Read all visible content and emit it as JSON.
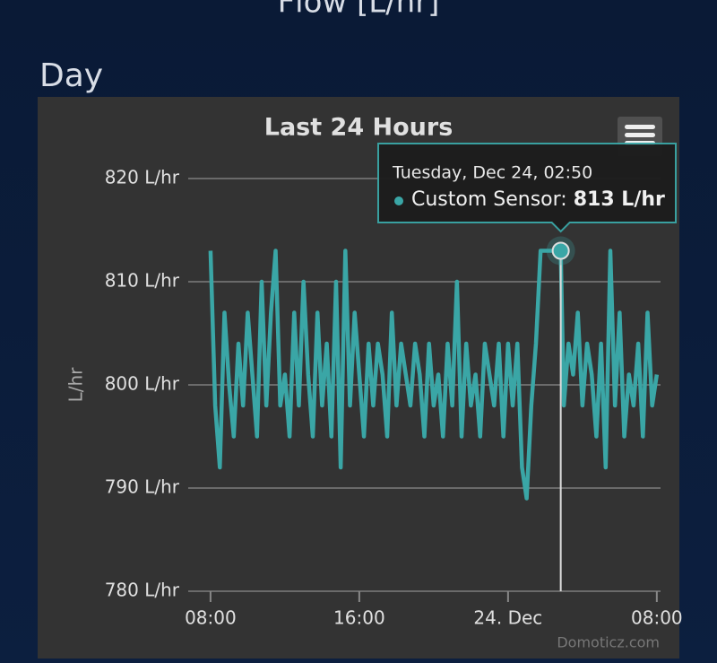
{
  "page_title": "Flow [L/hr]",
  "section": "Day",
  "credit": "Domoticz.com",
  "chart_data": {
    "type": "line",
    "title": "Last 24 Hours",
    "y_label": "L/hr",
    "x": [
      8,
      8.25,
      8.5,
      8.75,
      9,
      9.25,
      9.5,
      9.75,
      10,
      10.25,
      10.5,
      10.75,
      11,
      11.25,
      11.5,
      11.75,
      12,
      12.25,
      12.5,
      12.75,
      13,
      13.25,
      13.5,
      13.75,
      14,
      14.25,
      14.5,
      14.75,
      15,
      15.25,
      15.5,
      15.75,
      16,
      16.25,
      16.5,
      16.75,
      17,
      17.25,
      17.5,
      17.75,
      18,
      18.25,
      18.5,
      18.75,
      19,
      19.25,
      19.5,
      19.75,
      20,
      20.25,
      20.5,
      20.75,
      21,
      21.25,
      21.5,
      21.75,
      22,
      22.25,
      22.5,
      22.75,
      23,
      23.25,
      23.5,
      23.75,
      24,
      24.25,
      24.5,
      24.75,
      25,
      25.25,
      25.5,
      25.75,
      26,
      26.25,
      26.5,
      26.833,
      27,
      27.25,
      27.5,
      27.75,
      28,
      28.25,
      28.5,
      28.75,
      29,
      29.25,
      29.5,
      29.75,
      30,
      30.25,
      30.5,
      30.75,
      31,
      31.25,
      31.5,
      31.75,
      32
    ],
    "series": [
      {
        "name": "Custom Sensor",
        "color": "#3aa6a6",
        "values": [
          813,
          798,
          792,
          807,
          800,
          795,
          804,
          798,
          807,
          801,
          795,
          810,
          798,
          807,
          813,
          798,
          801,
          795,
          807,
          798,
          810,
          801,
          795,
          807,
          798,
          804,
          795,
          810,
          792,
          813,
          798,
          807,
          801,
          795,
          804,
          798,
          804,
          801,
          795,
          807,
          798,
          804,
          801,
          798,
          804,
          801,
          795,
          804,
          798,
          801,
          795,
          804,
          798,
          810,
          795,
          804,
          798,
          801,
          795,
          804,
          801,
          798,
          804,
          795,
          804,
          798,
          804,
          792,
          789,
          798,
          804,
          813,
          813,
          813,
          813,
          813,
          798,
          804,
          801,
          807,
          798,
          804,
          801,
          795,
          804,
          792,
          813,
          798,
          807,
          795,
          801,
          798,
          804,
          795,
          807,
          798,
          801
        ]
      }
    ],
    "xlim": [
      6.8,
      32.2
    ],
    "xticks": [
      {
        "value": 8,
        "label": "08:00"
      },
      {
        "value": 16,
        "label": "16:00"
      },
      {
        "value": 24,
        "label": "24. Dec"
      },
      {
        "value": 32,
        "label": "08:00"
      }
    ],
    "ylim": [
      780,
      820
    ],
    "yticks": [
      {
        "value": 780,
        "label": "780 L/hr"
      },
      {
        "value": 790,
        "label": "790 L/hr"
      },
      {
        "value": 800,
        "label": "800 L/hr"
      },
      {
        "value": 810,
        "label": "810 L/hr"
      },
      {
        "value": 820,
        "label": "820 L/hr"
      }
    ],
    "grid": true,
    "tooltip": {
      "index": 75,
      "date": "Tuesday, Dec 24, 02:50",
      "label": "Custom Sensor:",
      "value_label": "813 L/hr"
    }
  }
}
